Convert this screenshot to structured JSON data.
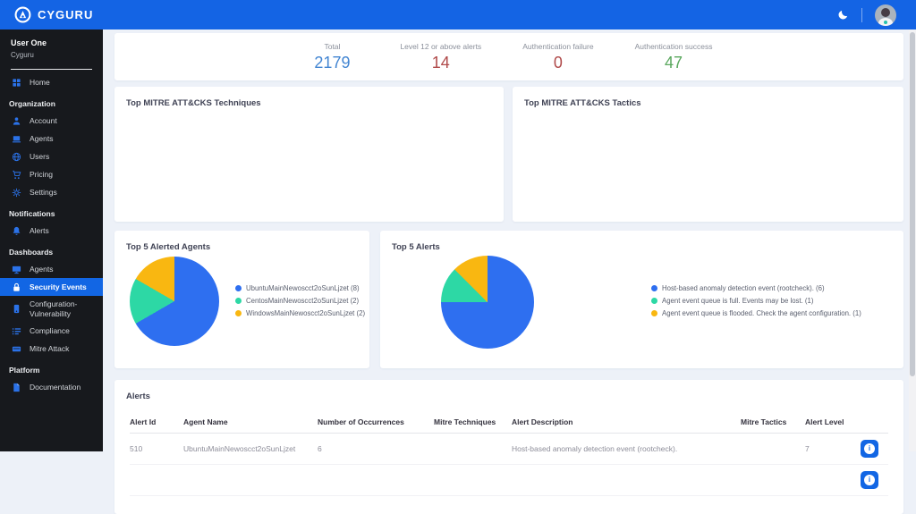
{
  "colors": {
    "navbar_blue": "#1464e4",
    "sidebar_bg": "#17191d",
    "active_item_blue": "#1266e4",
    "stat_blue": "#4285d2",
    "stat_red": "#b04a4a",
    "stat_green": "#5aa85e",
    "pie_blue": "#2e6ff0",
    "pie_teal": "#2dd8a5",
    "pie_yellow": "#f9b711"
  },
  "navbar": {
    "brand": "CYGURU"
  },
  "sidebar": {
    "user_name": "User One",
    "user_org": "Cyguru",
    "home": "Home",
    "organization_header": "Organization",
    "account": "Account",
    "agents": "Agents",
    "users": "Users",
    "pricing": "Pricing",
    "settings": "Settings",
    "notifications_header": "Notifications",
    "alerts": "Alerts",
    "dashboards_header": "Dashboards",
    "dash_agents": "Agents",
    "security_events": "Security Events",
    "config_vuln": "Configuration- Vulnerability",
    "compliance": "Compliance",
    "mitre_attack": "Mitre Attack",
    "platform_header": "Platform",
    "documentation": "Documentation"
  },
  "stats": [
    {
      "label": "Total",
      "value": "2179",
      "color": "#4285d2"
    },
    {
      "label": "Level 12 or above alerts",
      "value": "14",
      "color": "#b04a4a"
    },
    {
      "label": "Authentication failure",
      "value": "0",
      "color": "#b04a4a"
    },
    {
      "label": "Authentication success",
      "value": "47",
      "color": "#5aa85e"
    }
  ],
  "panels": {
    "techniques_title": "Top MITRE ATT&CKS Techniques",
    "tactics_title": "Top MITRE ATT&CKS Tactics"
  },
  "chart_data": [
    {
      "type": "pie",
      "title": "Top 5 Alerted Agents",
      "labels": [
        "UbuntuMainNewoscct2oSunLjzet",
        "CentosMainNewoscct2oSunLjzet",
        "WindowsMainNewoscct2oSunLjzet"
      ],
      "values": [
        8,
        2,
        2
      ],
      "colors": [
        "#2e6ff0",
        "#2dd8a5",
        "#f9b711"
      ],
      "legend_position": "right",
      "start_angle_deg": 0,
      "direction": "clockwise"
    },
    {
      "type": "pie",
      "title": "Top 5 Alerts",
      "labels": [
        "Host-based anomaly detection event (rootcheck).",
        "Agent event queue is full. Events may be lost.",
        "Agent event queue is flooded. Check the agent configuration."
      ],
      "values": [
        6,
        1,
        1
      ],
      "colors": [
        "#2e6ff0",
        "#2dd8a5",
        "#f9b711"
      ],
      "legend_position": "right",
      "start_angle_deg": 0,
      "direction": "clockwise"
    }
  ],
  "alerts_table": {
    "title": "Alerts",
    "columns": [
      "Alert Id",
      "Agent Name",
      "Number of Occurrences",
      "Mitre Techniques",
      "Alert Description",
      "Mitre Tactics",
      "Alert Level"
    ],
    "rows": [
      {
        "cells": [
          "510",
          "UbuntuMainNewoscct2oSunLjzet",
          "6",
          "",
          "Host-based anomaly detection event (rootcheck).",
          "",
          "7"
        ]
      },
      {
        "cells": [
          "",
          "",
          "",
          "",
          "",
          "",
          ""
        ]
      }
    ]
  }
}
